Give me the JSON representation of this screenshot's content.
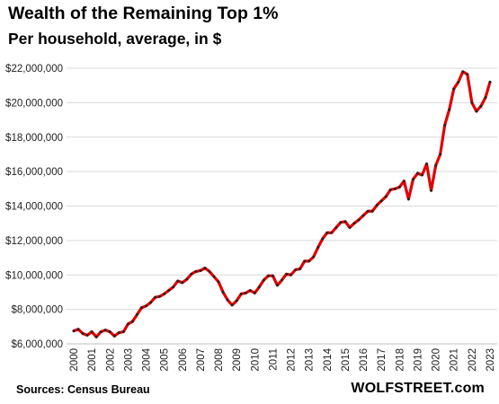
{
  "header": {
    "title": "Wealth of the Remaining Top 1%",
    "subtitle": "Per household, average, in $"
  },
  "footer": {
    "source": "Sources: Census Bureau",
    "brand": "WOLFSTREET.com"
  },
  "chart_data": {
    "type": "line",
    "title": "Wealth of the Remaining Top 1%",
    "subtitle": "Per household, average, in $",
    "xlabel": "",
    "ylabel": "",
    "xlim": [
      2000,
      2023
    ],
    "ylim": [
      6000000,
      22000000
    ],
    "grid": {
      "horizontal": true,
      "vertical": false
    },
    "line_color": "#e00000",
    "marker_color": "#222222",
    "y_ticks": [
      6000000,
      8000000,
      10000000,
      12000000,
      14000000,
      16000000,
      18000000,
      20000000,
      22000000
    ],
    "y_tick_labels": [
      "$6,000,000",
      "$8,000,000",
      "$10,000,000",
      "$12,000,000",
      "$14,000,000",
      "$16,000,000",
      "$18,000,000",
      "$20,000,000",
      "$22,000,000"
    ],
    "x_ticks": [
      2000,
      2001,
      2002,
      2003,
      2004,
      2005,
      2006,
      2007,
      2008,
      2009,
      2010,
      2011,
      2012,
      2013,
      2014,
      2015,
      2016,
      2017,
      2018,
      2019,
      2020,
      2021,
      2022,
      2023
    ],
    "x_tick_labels": [
      "2000",
      "2001",
      "2002",
      "2003",
      "2004",
      "2005",
      "2006",
      "2007",
      "2008",
      "2009",
      "2010",
      "2011",
      "2012",
      "2013",
      "2014",
      "2015",
      "2016",
      "2017",
      "2018",
      "2019",
      "2020",
      "2021",
      "2022",
      "2023"
    ],
    "series": [
      {
        "x": [
          2000.0,
          2000.25,
          2000.5,
          2000.75,
          2001.0,
          2001.25,
          2001.5,
          2001.75,
          2002.0,
          2002.25,
          2002.5,
          2002.75,
          2003.0,
          2003.25,
          2003.5,
          2003.75,
          2004.0,
          2004.25,
          2004.5,
          2004.75,
          2005.0,
          2005.25,
          2005.5,
          2005.75,
          2006.0,
          2006.25,
          2006.5,
          2006.75,
          2007.0,
          2007.25,
          2007.5,
          2007.75,
          2008.0,
          2008.25,
          2008.5,
          2008.75,
          2009.0,
          2009.25,
          2009.5,
          2009.75,
          2010.0,
          2010.25,
          2010.5,
          2010.75,
          2011.0,
          2011.25,
          2011.5,
          2011.75,
          2012.0,
          2012.25,
          2012.5,
          2012.75,
          2013.0,
          2013.25,
          2013.5,
          2013.75,
          2014.0,
          2014.25,
          2014.5,
          2014.75,
          2015.0,
          2015.25,
          2015.5,
          2015.75,
          2016.0,
          2016.25,
          2016.5,
          2016.75,
          2017.0,
          2017.25,
          2017.5,
          2017.75,
          2018.0,
          2018.25,
          2018.5,
          2018.75,
          2019.0,
          2019.25,
          2019.5,
          2019.75,
          2020.0,
          2020.25,
          2020.5,
          2020.75,
          2021.0,
          2021.25,
          2021.5,
          2021.75,
          2022.0,
          2022.25,
          2022.5,
          2022.75,
          2023.0
        ],
        "values": [
          6750000,
          6850000,
          6600000,
          6500000,
          6700000,
          6400000,
          6700000,
          6800000,
          6700000,
          6450000,
          6650000,
          6700000,
          7150000,
          7300000,
          7700000,
          8100000,
          8200000,
          8400000,
          8700000,
          8750000,
          8900000,
          9100000,
          9300000,
          9650000,
          9550000,
          9750000,
          10050000,
          10200000,
          10250000,
          10400000,
          10200000,
          9900000,
          9600000,
          9000000,
          8550000,
          8250000,
          8500000,
          8900000,
          8950000,
          9100000,
          8950000,
          9300000,
          9700000,
          9950000,
          9950000,
          9400000,
          9700000,
          10050000,
          10000000,
          10300000,
          10350000,
          10800000,
          10800000,
          11050000,
          11600000,
          12100000,
          12450000,
          12450000,
          12750000,
          13050000,
          13100000,
          12750000,
          13000000,
          13200000,
          13450000,
          13700000,
          13700000,
          14050000,
          14300000,
          14550000,
          14950000,
          15000000,
          15100000,
          15450000,
          14400000,
          15550000,
          15900000,
          15800000,
          16450000,
          14900000,
          16350000,
          17000000,
          18700000,
          19600000,
          20800000,
          21200000,
          21800000,
          21650000,
          20000000,
          19500000,
          19800000,
          20300000,
          21200000
        ]
      }
    ]
  }
}
